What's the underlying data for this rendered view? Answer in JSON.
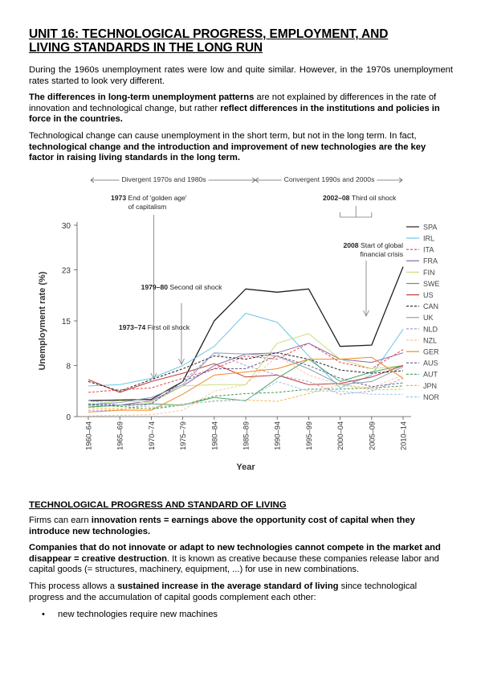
{
  "title_line1": "UNIT 16: TECHNOLOGICAL PROGRESS, EMPLOYMENT, AND",
  "title_line2": "LIVING STANDARDS IN THE LONG RUN",
  "para1": "During the 1960s unemployment rates were low and quite similar. However, in the 1970s unemployment rates started to look very different.",
  "para2": {
    "b1": "The differences in long-term unemployment patterns",
    "t1": " are not explained by differences in the rate of innovation and technological change, but rather ",
    "b2": "reflect differences in the institutions and policies in force in the countries."
  },
  "para3": {
    "t1": "Technological change can cause unemployment in the short term, but not in the long term. In fact, ",
    "b1": "technological change and the introduction and improvement of new technologies are the key factor in raising living standards in the long term."
  },
  "chart_data": {
    "type": "line",
    "ylabel": "Unemployment rate (%)",
    "xlabel": "Year",
    "categories": [
      "1960–64",
      "1965–69",
      "1970–74",
      "1975–79",
      "1980–84",
      "1985–89",
      "1990–94",
      "1995–99",
      "2000–04",
      "2005–09",
      "2010–14"
    ],
    "yticks": [
      0,
      8,
      15,
      23,
      30
    ],
    "ylim": [
      0,
      30
    ],
    "grid": false,
    "legend_position": "right",
    "periods": [
      "Divergent 1970s and 1980s",
      "Convergent 1990s and 2000s"
    ],
    "annotations": [
      {
        "bold": "1973",
        "text": "End of 'golden age'",
        "text2": "of capitalism"
      },
      {
        "bold": "2002–08",
        "text": "Third oil shock"
      },
      {
        "bold": "2008",
        "text": "Start of global",
        "text2": "financial crisis"
      },
      {
        "bold": "1979–80",
        "text": "Second oil shock"
      },
      {
        "bold": "1973–74",
        "text": "First oil shock"
      }
    ],
    "series": [
      {
        "name": "SPA",
        "color": "#231f20",
        "dash": "",
        "values": [
          2.5,
          2.6,
          2.7,
          5.5,
          15.0,
          20.0,
          19.5,
          20.0,
          11.0,
          11.2,
          23.5
        ]
      },
      {
        "name": "IRL",
        "color": "#6ec6e8",
        "dash": "",
        "values": [
          4.8,
          5.0,
          6.0,
          8.0,
          11.0,
          16.2,
          14.8,
          9.5,
          4.5,
          6.5,
          13.7
        ]
      },
      {
        "name": "ITA",
        "color": "#e8474c",
        "dash": "3,2",
        "values": [
          3.8,
          4.2,
          4.5,
          6.0,
          7.5,
          9.5,
          9.0,
          11.5,
          8.5,
          7.5,
          10.5
        ]
      },
      {
        "name": "FRA",
        "color": "#8b6aa8",
        "dash": "",
        "values": [
          1.5,
          1.8,
          2.5,
          4.8,
          8.0,
          9.8,
          10.0,
          11.5,
          9.0,
          8.5,
          10.0
        ]
      },
      {
        "name": "FIN",
        "color": "#c8df7a",
        "dash": "",
        "values": [
          1.8,
          2.5,
          2.2,
          4.8,
          5.0,
          5.0,
          11.5,
          13.0,
          9.0,
          7.5,
          8.0
        ]
      },
      {
        "name": "SWE",
        "color": "#4aa564",
        "dash": "",
        "values": [
          1.5,
          1.8,
          2.0,
          1.8,
          3.0,
          2.5,
          6.0,
          9.0,
          5.5,
          7.0,
          8.0
        ]
      },
      {
        "name": "US",
        "color": "#c23b3b",
        "dash": "",
        "values": [
          5.8,
          3.8,
          5.5,
          6.8,
          8.3,
          6.2,
          6.5,
          5.0,
          5.2,
          6.2,
          8.0
        ]
      },
      {
        "name": "CAN",
        "color": "#231f20",
        "dash": "3,2",
        "values": [
          5.5,
          4.0,
          5.8,
          7.5,
          9.5,
          9.0,
          10.0,
          9.0,
          7.3,
          6.8,
          7.2
        ]
      },
      {
        "name": "UK",
        "color": "#8aa0b8",
        "dash": "",
        "values": [
          1.8,
          2.2,
          3.0,
          5.0,
          10.0,
          9.8,
          9.5,
          7.5,
          5.0,
          5.5,
          7.8
        ]
      },
      {
        "name": "NLD",
        "color": "#a99ad0",
        "dash": "3,2",
        "values": [
          1.0,
          1.0,
          2.0,
          5.5,
          10.0,
          8.0,
          6.5,
          5.5,
          3.5,
          4.0,
          6.0
        ]
      },
      {
        "name": "NZL",
        "color": "#f4c6a6",
        "dash": "3,2",
        "values": [
          0.1,
          0.2,
          0.3,
          1.0,
          4.0,
          5.0,
          9.5,
          6.5,
          5.0,
          4.5,
          6.5
        ]
      },
      {
        "name": "GER",
        "color": "#f08a24",
        "dash": "",
        "values": [
          0.7,
          1.0,
          1.0,
          3.5,
          6.5,
          7.0,
          7.5,
          9.0,
          9.0,
          9.3,
          6.0
        ]
      },
      {
        "name": "AUS",
        "color": "#6a5a8a",
        "dash": "3,2",
        "values": [
          2.0,
          1.8,
          2.0,
          5.5,
          7.5,
          7.5,
          9.5,
          8.0,
          6.0,
          4.7,
          5.3
        ]
      },
      {
        "name": "AUT",
        "color": "#3e9a52",
        "dash": "3,2",
        "values": [
          1.8,
          1.6,
          1.2,
          1.8,
          3.2,
          3.6,
          3.8,
          4.3,
          4.3,
          4.5,
          4.8
        ]
      },
      {
        "name": "JPN",
        "color": "#f0b84c",
        "dash": "3,2",
        "values": [
          1.4,
          1.2,
          1.3,
          2.0,
          2.4,
          2.6,
          2.4,
          3.6,
          5.0,
          4.2,
          4.3
        ]
      },
      {
        "name": "NOR",
        "color": "#9cc6e6",
        "dash": "3,2",
        "values": [
          2.5,
          1.8,
          1.5,
          1.8,
          2.5,
          2.6,
          5.5,
          4.0,
          4.0,
          3.5,
          3.5
        ]
      }
    ]
  },
  "section2": {
    "heading": "TECHNOLOGICAL PROGRESS AND STANDARD OF LIVING",
    "p1": {
      "t1": "Firms can earn ",
      "b1": "innovation rents = earnings above the opportunity cost of capital when they introduce new technologies."
    },
    "p2": {
      "b1": "Companies that do not innovate or adapt to new technologies cannot compete in the market and disappear = creative destruction",
      "t1": ". It is known as creative because these companies release labor and capital goods (= structures, machinery, equipment, ...) for use in new combinations."
    },
    "p3": {
      "t1": "This process allows a ",
      "b1": "sustained increase in the average standard of living",
      "t2": " since technological progress and the accumulation of capital goods complement each other:"
    },
    "bullets": [
      "new technologies require new machines"
    ]
  }
}
